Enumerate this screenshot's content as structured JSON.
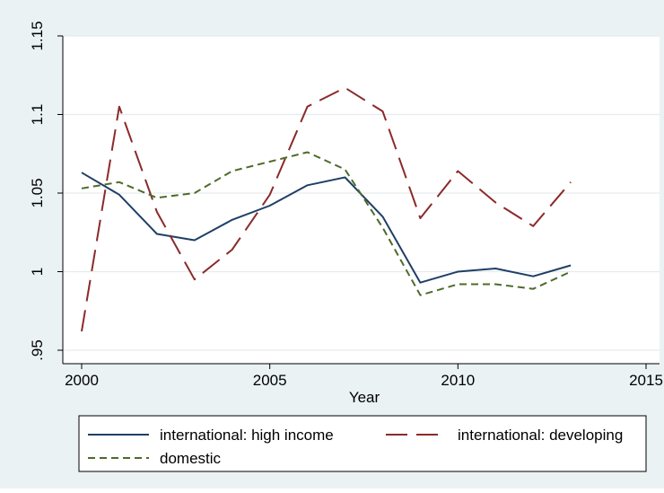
{
  "chart_data": {
    "type": "line",
    "title": "",
    "xlabel": "Year",
    "ylabel": "",
    "xlim": [
      2000,
      2015
    ],
    "ylim": [
      0.95,
      1.15
    ],
    "x_ticks": [
      "2000",
      "2005",
      "2010",
      "2015"
    ],
    "y_ticks": [
      ".95",
      "1",
      "1.05",
      "1.1",
      "1.15"
    ],
    "x": [
      2000,
      2001,
      2002,
      2003,
      2004,
      2005,
      2006,
      2007,
      2008,
      2009,
      2010,
      2011,
      2012,
      2013
    ],
    "series": [
      {
        "name": "international: high income",
        "color": "#1f3f66",
        "dash": "solid",
        "values": [
          1.063,
          1.049,
          1.024,
          1.02,
          1.033,
          1.042,
          1.055,
          1.06,
          1.035,
          0.993,
          1.0,
          1.002,
          0.997,
          1.004
        ]
      },
      {
        "name": "international: developing",
        "color": "#8b2a2a",
        "dash": "long-dash",
        "values": [
          0.962,
          1.105,
          1.038,
          0.995,
          1.014,
          1.049,
          1.105,
          1.117,
          1.102,
          1.034,
          1.064,
          1.044,
          1.029,
          1.057
        ]
      },
      {
        "name": "domestic",
        "color": "#4d6b2a",
        "dash": "short-dash",
        "values": [
          1.053,
          1.057,
          1.047,
          1.05,
          1.064,
          1.07,
          1.076,
          1.065,
          1.028,
          0.985,
          0.992,
          0.992,
          0.989,
          1.0
        ]
      }
    ],
    "grid": true,
    "legend_position": "bottom"
  }
}
